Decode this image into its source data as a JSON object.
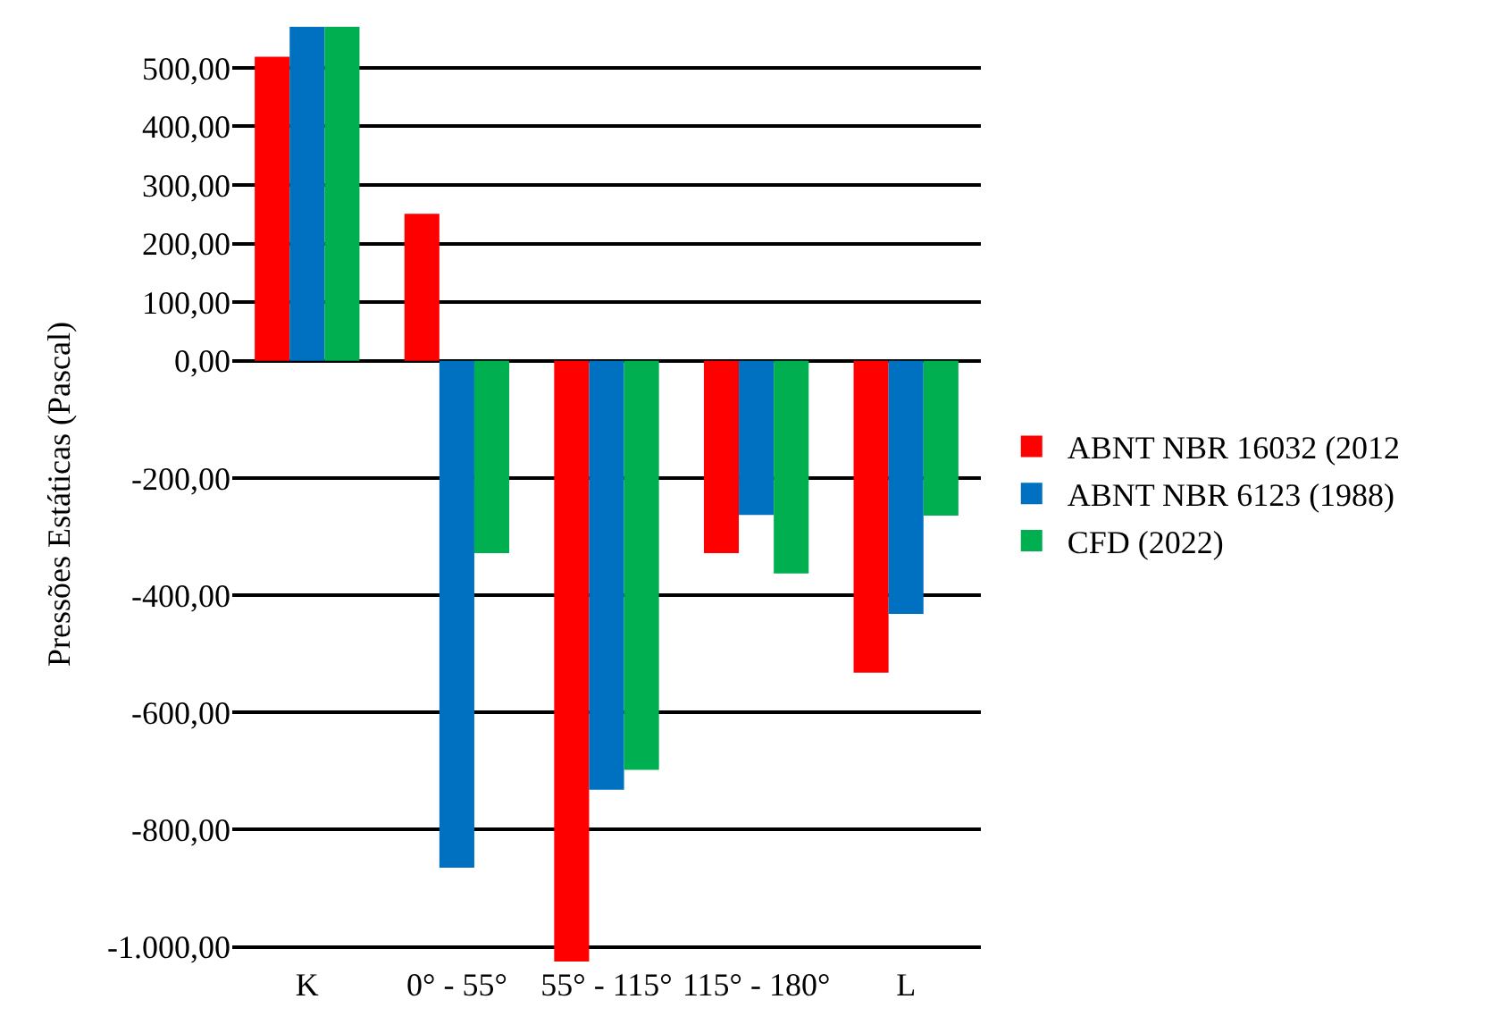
{
  "chart_data": {
    "type": "bar",
    "ylabel": "Pressões Estáticas (Pascal)",
    "categories": [
      "K",
      "0° - 55°",
      "55° - 115°",
      "115° - 180°",
      "L"
    ],
    "series": [
      {
        "name": "ABNT NBR 16032 (2012",
        "color": "#ff0000",
        "values": [
          519,
          251,
          -1025,
          -328,
          -532
        ]
      },
      {
        "name": "ABNT NBR 6123 (1988)",
        "color": "#0070c0",
        "values": [
          570,
          -865,
          -732,
          -263,
          -432
        ]
      },
      {
        "name": "CFD (2022)",
        "color": "#00b050",
        "values": [
          570,
          -328,
          -698,
          -363,
          -264
        ]
      }
    ],
    "ylim": [
      -1025,
      570
    ],
    "yticks": [
      {
        "value": 500,
        "label": "500,00"
      },
      {
        "value": 400,
        "label": "400,00"
      },
      {
        "value": 300,
        "label": "300,00"
      },
      {
        "value": 200,
        "label": "200,00"
      },
      {
        "value": 100,
        "label": "100,00"
      },
      {
        "value": 0,
        "label": "0,00"
      },
      {
        "value": -200,
        "label": "-200,00"
      },
      {
        "value": -400,
        "label": "-400,00"
      },
      {
        "value": -600,
        "label": "-600,00"
      },
      {
        "value": -800,
        "label": "-800,00"
      },
      {
        "value": -1000,
        "label": "-1.000,00"
      }
    ],
    "grid": "y",
    "legend": "right"
  }
}
